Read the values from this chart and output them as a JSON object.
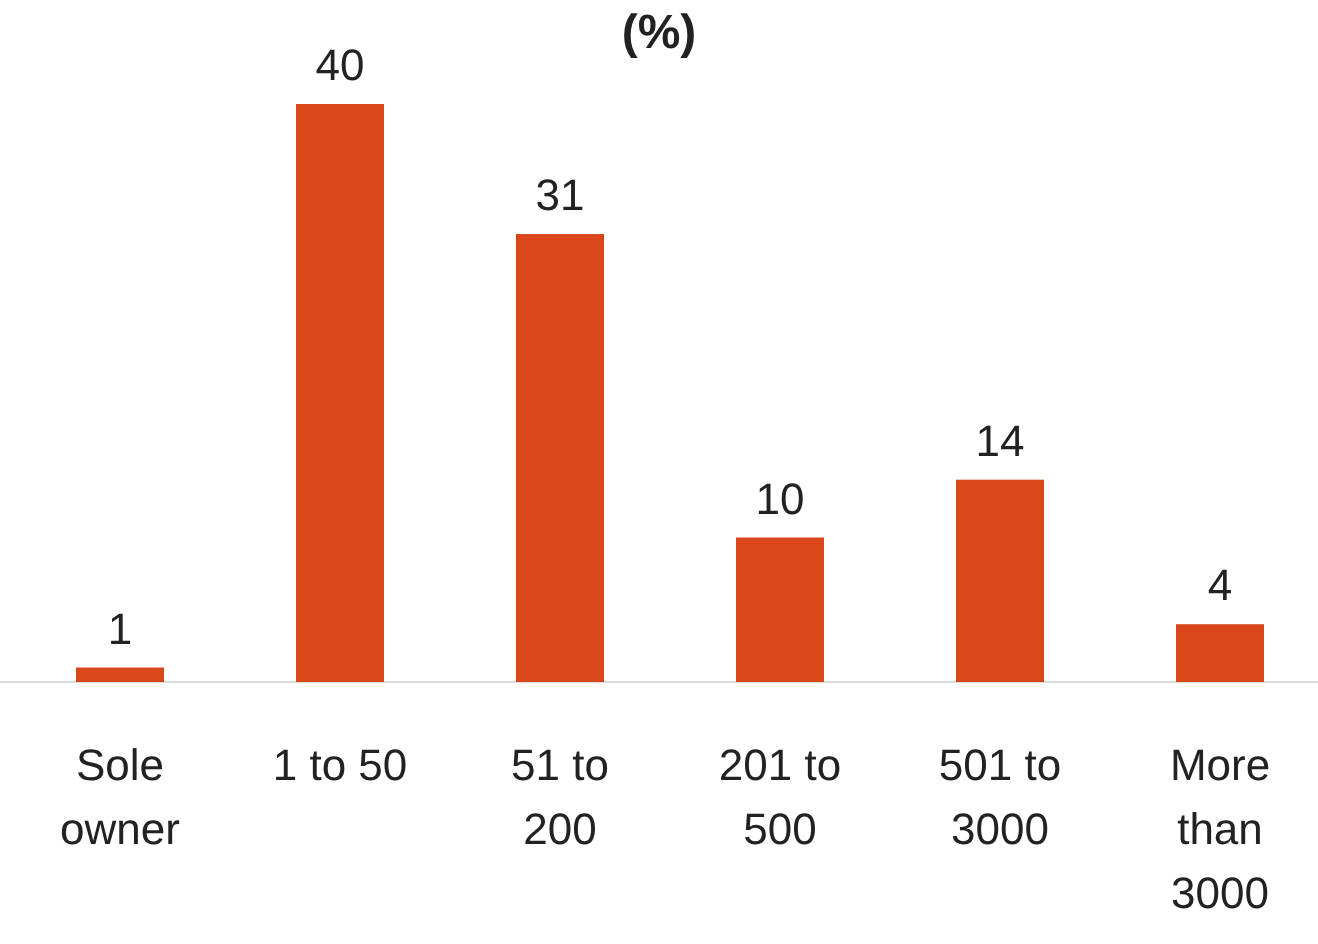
{
  "chart_data": {
    "type": "bar",
    "title": "(%)",
    "categories": [
      "Sole owner",
      "1 to 50",
      "51 to 200",
      "201 to 500",
      "501 to 3000",
      "More than 3000"
    ],
    "values": [
      1,
      40,
      31,
      10,
      14,
      4
    ],
    "color": "#d9471a",
    "data_labels": true
  }
}
